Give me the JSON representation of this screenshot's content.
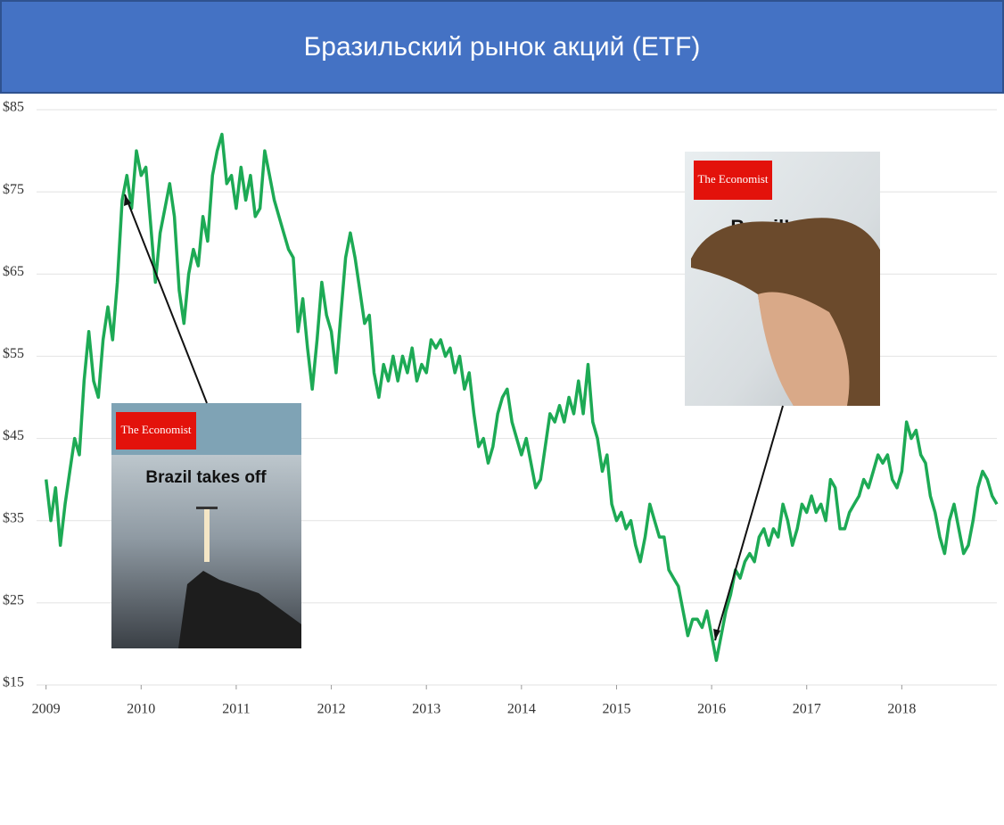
{
  "chart_data": {
    "type": "line",
    "title": "Бразильский рынок акций (ETF)",
    "x": [
      2009,
      2009.05,
      2009.1,
      2009.15,
      2009.2,
      2009.25,
      2009.3,
      2009.35,
      2009.4,
      2009.45,
      2009.5,
      2009.55,
      2009.6,
      2009.65,
      2009.7,
      2009.75,
      2009.8,
      2009.85,
      2009.9,
      2009.95,
      2010,
      2010.05,
      2010.1,
      2010.15,
      2010.2,
      2010.25,
      2010.3,
      2010.35,
      2010.4,
      2010.45,
      2010.5,
      2010.55,
      2010.6,
      2010.65,
      2010.7,
      2010.75,
      2010.8,
      2010.85,
      2010.9,
      2010.95,
      2011,
      2011.05,
      2011.1,
      2011.15,
      2011.2,
      2011.25,
      2011.3,
      2011.35,
      2011.4,
      2011.45,
      2011.5,
      2011.55,
      2011.6,
      2011.65,
      2011.7,
      2011.75,
      2011.8,
      2011.85,
      2011.9,
      2011.95,
      2012,
      2012.05,
      2012.1,
      2012.15,
      2012.2,
      2012.25,
      2012.3,
      2012.35,
      2012.4,
      2012.45,
      2012.5,
      2012.55,
      2012.6,
      2012.65,
      2012.7,
      2012.75,
      2012.8,
      2012.85,
      2012.9,
      2012.95,
      2013,
      2013.05,
      2013.1,
      2013.15,
      2013.2,
      2013.25,
      2013.3,
      2013.35,
      2013.4,
      2013.45,
      2013.5,
      2013.55,
      2013.6,
      2013.65,
      2013.7,
      2013.75,
      2013.8,
      2013.85,
      2013.9,
      2013.95,
      2014,
      2014.05,
      2014.1,
      2014.15,
      2014.2,
      2014.25,
      2014.3,
      2014.35,
      2014.4,
      2014.45,
      2014.5,
      2014.55,
      2014.6,
      2014.65,
      2014.7,
      2014.75,
      2014.8,
      2014.85,
      2014.9,
      2014.95,
      2015,
      2015.05,
      2015.1,
      2015.15,
      2015.2,
      2015.25,
      2015.3,
      2015.35,
      2015.4,
      2015.45,
      2015.5,
      2015.55,
      2015.6,
      2015.65,
      2015.7,
      2015.75,
      2015.8,
      2015.85,
      2015.9,
      2015.95,
      2016,
      2016.05,
      2016.1,
      2016.15,
      2016.2,
      2016.25,
      2016.3,
      2016.35,
      2016.4,
      2016.45,
      2016.5,
      2016.55,
      2016.6,
      2016.65,
      2016.7,
      2016.75,
      2016.8,
      2016.85,
      2016.9,
      2016.95,
      2017,
      2017.05,
      2017.1,
      2017.15,
      2017.2,
      2017.25,
      2017.3,
      2017.35,
      2017.4,
      2017.45,
      2017.5,
      2017.55,
      2017.6,
      2017.65,
      2017.7,
      2017.75,
      2017.8,
      2017.85,
      2017.9,
      2017.95,
      2018,
      2018.05,
      2018.1,
      2018.15,
      2018.2,
      2018.25,
      2018.3,
      2018.35,
      2018.4,
      2018.45,
      2018.5,
      2018.55,
      2018.6,
      2018.65,
      2018.7,
      2018.75,
      2018.8,
      2018.85,
      2018.9,
      2018.95,
      2019
    ],
    "values": [
      40,
      35,
      39,
      32,
      37,
      41,
      45,
      43,
      52,
      58,
      52,
      50,
      57,
      61,
      57,
      64,
      74,
      77,
      73,
      80,
      77,
      78,
      71,
      64,
      70,
      73,
      76,
      72,
      63,
      59,
      65,
      68,
      66,
      72,
      69,
      77,
      80,
      82,
      76,
      77,
      73,
      78,
      74,
      77,
      72,
      73,
      80,
      77,
      74,
      72,
      70,
      68,
      67,
      58,
      62,
      56,
      51,
      57,
      64,
      60,
      58,
      53,
      60,
      67,
      70,
      67,
      63,
      59,
      60,
      53,
      50,
      54,
      52,
      55,
      52,
      55,
      53,
      56,
      52,
      54,
      53,
      57,
      56,
      57,
      55,
      56,
      53,
      55,
      51,
      53,
      48,
      44,
      45,
      42,
      44,
      48,
      50,
      51,
      47,
      45,
      43,
      45,
      42,
      39,
      40,
      44,
      48,
      47,
      49,
      47,
      50,
      48,
      52,
      48,
      54,
      47,
      45,
      41,
      43,
      37,
      35,
      36,
      34,
      35,
      32,
      30,
      33,
      37,
      35,
      33,
      33,
      29,
      28,
      27,
      24,
      21,
      23,
      23,
      22,
      24,
      21,
      18,
      21,
      24,
      26,
      29,
      28,
      30,
      31,
      30,
      33,
      34,
      32,
      34,
      33,
      37,
      35,
      32,
      34,
      37,
      36,
      38,
      36,
      37,
      35,
      40,
      39,
      34,
      34,
      36,
      37,
      38,
      40,
      39,
      41,
      43,
      42,
      43,
      40,
      39,
      41,
      47,
      45,
      46,
      43,
      42,
      38,
      36,
      33,
      31,
      35,
      37,
      34,
      31,
      32,
      35,
      39,
      41,
      40,
      38,
      37
    ],
    "color": "#1daa55",
    "xlim": [
      2008.9,
      2019
    ],
    "xticks": [
      2009,
      2010,
      2011,
      2012,
      2013,
      2014,
      2015,
      2016,
      2017,
      2018
    ],
    "ylim": [
      15,
      85
    ],
    "yticks": [
      {
        "value": 15,
        "label": "$15"
      },
      {
        "value": 25,
        "label": "$25"
      },
      {
        "value": 35,
        "label": "$35"
      },
      {
        "value": 45,
        "label": "$45"
      },
      {
        "value": 55,
        "label": "$55"
      },
      {
        "value": 65,
        "label": "$65"
      },
      {
        "value": 75,
        "label": "$75"
      },
      {
        "value": 85,
        "label": "$85"
      }
    ],
    "grid": true,
    "annotations": [
      {
        "publisher": "The Economist",
        "headline": "Brazil takes off"
      },
      {
        "publisher": "The Economist",
        "headline": "Brazil’s fall"
      }
    ]
  }
}
